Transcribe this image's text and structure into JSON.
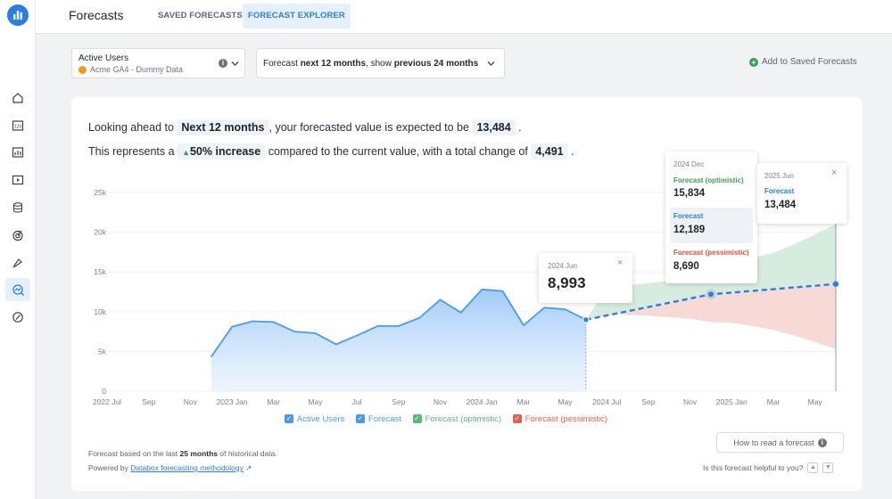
{
  "header": {
    "title": "Forecasts",
    "tabs": [
      {
        "label": "SAVED FORECASTS",
        "active": false
      },
      {
        "label": "FORECAST EXPLORER",
        "active": true
      }
    ]
  },
  "sidebar": {
    "logo": "databox-logo-icon",
    "items": [
      {
        "icon": "home-icon",
        "active": false
      },
      {
        "icon": "metrics-icon",
        "active": false
      },
      {
        "icon": "reports-icon",
        "active": false
      },
      {
        "icon": "slides-icon",
        "active": false
      },
      {
        "icon": "data-icon",
        "active": false
      },
      {
        "icon": "goals-icon",
        "active": false
      },
      {
        "icon": "alerts-icon",
        "active": false
      },
      {
        "icon": "forecasts-icon",
        "active": true
      },
      {
        "icon": "benchmarks-icon",
        "active": false
      }
    ]
  },
  "metric_selector": {
    "metric": "Active Users",
    "source": "Acme GA4 - Dummy Data"
  },
  "period_selector": {
    "prefix": "Forecast ",
    "forecast_period": "next 12 months",
    "middle": ", show ",
    "history_period": "previous 24 months"
  },
  "add_saved_label": "Add to Saved Forecasts",
  "summary": {
    "line1_a": "Looking ahead to",
    "horizon": "Next 12 months",
    "line1_b": ", your forecasted value is expected to be",
    "forecast_value": "13,484",
    "line1_c": ".",
    "line2_a": "This represents a",
    "increase": "50% increase",
    "line2_b": "compared to the current value, with a total change of",
    "total_change": "4,491",
    "line2_c": "."
  },
  "chart_data": {
    "type": "area",
    "y_ticks": [
      "25k",
      "20k",
      "15k",
      "10k",
      "5k",
      "0"
    ],
    "ylim": [
      0,
      25000
    ],
    "x_ticks": [
      "2022 Jul",
      "Sep",
      "Nov",
      "2023 Jan",
      "Mar",
      "May",
      "Jul",
      "Sep",
      "Nov",
      "2024 Jan",
      "Mar",
      "May",
      "2024 Jul",
      "Sep",
      "Nov",
      "2025 Jan",
      "Mar",
      "May"
    ],
    "history": {
      "name": "Active Users",
      "x": [
        "2022-12",
        "2023-01",
        "2023-02",
        "2023-03",
        "2023-04",
        "2023-05",
        "2023-06",
        "2023-07",
        "2023-08",
        "2023-09",
        "2023-10",
        "2023-11",
        "2023-12",
        "2024-01",
        "2024-02",
        "2024-03",
        "2024-04",
        "2024-05",
        "2024-06"
      ],
      "values": [
        4300,
        8100,
        8800,
        8700,
        7500,
        7300,
        5900,
        7000,
        8200,
        8200,
        9200,
        11500,
        9900,
        12800,
        12600,
        8300,
        10500,
        10300,
        8993
      ]
    },
    "forecast": {
      "name": "Forecast",
      "x": [
        "2024-06",
        "2024-12",
        "2025-06"
      ],
      "values": [
        8993,
        12189,
        13484
      ]
    },
    "optimistic": {
      "name": "Forecast (optimistic)",
      "x": [
        "2024-06",
        "2024-07",
        "2024-08",
        "2024-09",
        "2024-10",
        "2024-11",
        "2024-12",
        "2025-01",
        "2025-02",
        "2025-03",
        "2025-04",
        "2025-05",
        "2025-06"
      ],
      "values": [
        8993,
        12800,
        13300,
        13600,
        13900,
        14300,
        15834,
        16200,
        16700,
        17400,
        18500,
        19700,
        21000
      ]
    },
    "pessimistic": {
      "name": "Forecast (pessimistic)",
      "x": [
        "2024-06",
        "2024-07",
        "2024-08",
        "2024-09",
        "2024-10",
        "2024-11",
        "2024-12",
        "2025-01",
        "2025-02",
        "2025-03",
        "2025-04",
        "2025-05",
        "2025-06"
      ],
      "values": [
        8993,
        9800,
        9600,
        9500,
        9300,
        9100,
        8690,
        8600,
        8200,
        7700,
        7000,
        6200,
        5300
      ]
    },
    "colors": {
      "history": "#4a9af0",
      "forecast": "#2b7de1",
      "optimistic": "#cfe9d8",
      "pessimistic": "#f6d3cf"
    }
  },
  "tooltips": {
    "current": {
      "date": "2024 Jun",
      "value": "8,993"
    },
    "mid": {
      "date": "2024 Dec",
      "optimistic_label": "Forecast (optimistic)",
      "optimistic_value": "15,834",
      "forecast_label": "Forecast",
      "forecast_value": "12,189",
      "pessimistic_label": "Forecast (pessimistic)",
      "pessimistic_value": "8,690"
    },
    "end": {
      "date": "2025 Jun",
      "forecast_label": "Forecast",
      "forecast_value": "13,484"
    }
  },
  "legend": [
    {
      "label": "Active Users",
      "color": "#4a9af0",
      "checked": true
    },
    {
      "label": "Forecast",
      "color": "#4a9af0",
      "checked": true
    },
    {
      "label": "Forecast (optimistic)",
      "color": "#5cb77a",
      "checked": true
    },
    {
      "label": "Forecast (pessimistic)",
      "color": "#e0604f",
      "checked": true
    }
  ],
  "footer": {
    "basis_a": "Forecast based on the last ",
    "basis_months": "25 months",
    "basis_b": " of historical data.",
    "powered_a": "Powered by ",
    "powered_link": "Databox forecasting methodology",
    "howto_label": "How to read a forecast",
    "helpful_label": "Is this forecast helpful to you?"
  }
}
